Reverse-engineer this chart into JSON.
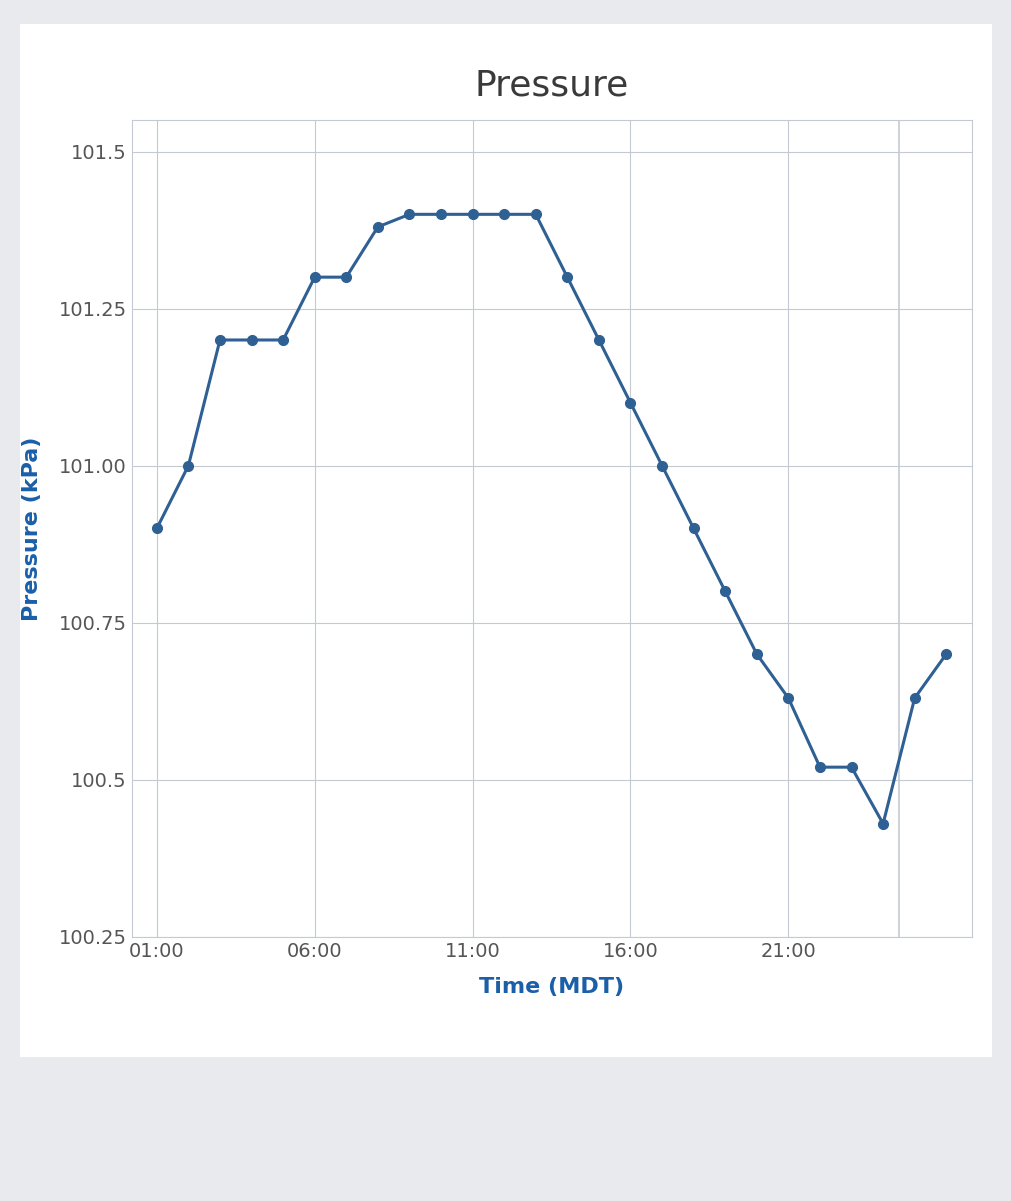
{
  "title": "Pressure",
  "xlabel": "Time (MDT)",
  "ylabel": "Pressure (kPa)",
  "ylim": [
    100.25,
    101.55
  ],
  "yticks": [
    100.25,
    100.5,
    100.75,
    101.0,
    101.25,
    101.5
  ],
  "background_color": "#e8eaed",
  "plot_bg_color": "#ffffff",
  "card_bg_color": "#ffffff",
  "line_color": "#2e6093",
  "marker_color": "#2e6093",
  "grid_color": "#c5cad2",
  "title_color": "#3a3a3a",
  "xlabel_color": "#1a5fa8",
  "ylabel_color": "#1a5fa8",
  "tick_color": "#555555",
  "time_hours": [
    1,
    2,
    3,
    4,
    5,
    6,
    7,
    8,
    9,
    10,
    11,
    12,
    13,
    14,
    15,
    16,
    17,
    18,
    19,
    20,
    21,
    22,
    23,
    24,
    25,
    26
  ],
  "pressure": [
    100.9,
    101.0,
    101.2,
    101.2,
    101.2,
    101.3,
    101.3,
    101.38,
    101.4,
    101.4,
    101.4,
    101.4,
    101.4,
    101.3,
    101.2,
    101.1,
    101.0,
    100.9,
    100.8,
    100.7,
    100.63,
    100.52,
    100.52,
    100.43,
    100.63,
    100.7
  ],
  "xtick_hours": [
    1,
    6,
    11,
    16,
    21
  ],
  "xtick_labels": [
    "01:00",
    "06:00",
    "11:00",
    "16:00",
    "21:00"
  ],
  "xlim_left": 0.2,
  "xlim_right": 26.8,
  "vline_hour": 24.5,
  "title_fontsize": 26,
  "axis_label_fontsize": 16,
  "tick_fontsize": 14
}
